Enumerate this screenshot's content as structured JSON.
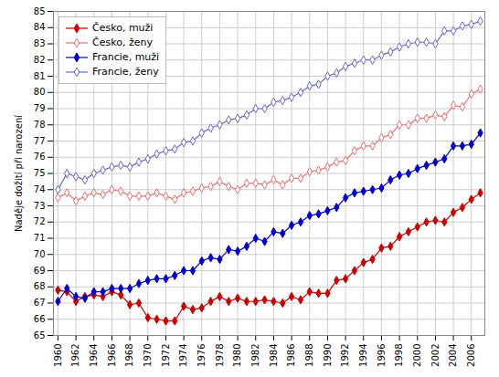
{
  "chart_data": {
    "type": "line",
    "ylabel": "Naděje dožití při narození",
    "xlim": [
      1959.5,
      2007.5
    ],
    "ylim": [
      65,
      85
    ],
    "xticks": [
      1960,
      1962,
      1964,
      1966,
      1968,
      1970,
      1972,
      1974,
      1976,
      1978,
      1980,
      1982,
      1984,
      1986,
      1988,
      1990,
      1992,
      1994,
      1996,
      1998,
      2000,
      2002,
      2004,
      2006
    ],
    "yticks": [
      65,
      66,
      67,
      68,
      69,
      70,
      71,
      72,
      73,
      74,
      75,
      76,
      77,
      78,
      79,
      80,
      81,
      82,
      83,
      84,
      85
    ],
    "grid": true,
    "legend": "upper left",
    "x": [
      1960,
      1961,
      1962,
      1963,
      1964,
      1965,
      1966,
      1967,
      1968,
      1969,
      1970,
      1971,
      1972,
      1973,
      1974,
      1975,
      1976,
      1977,
      1978,
      1979,
      1980,
      1981,
      1982,
      1983,
      1984,
      1985,
      1986,
      1987,
      1988,
      1989,
      1990,
      1991,
      1992,
      1993,
      1994,
      1995,
      1996,
      1997,
      1998,
      1999,
      2000,
      2001,
      2002,
      2003,
      2004,
      2005,
      2006,
      2007
    ],
    "series": [
      {
        "name": "Česko, muži",
        "color": "#cc0000",
        "marker": "diamond",
        "values": [
          67.8,
          67.7,
          67.1,
          67.4,
          67.5,
          67.4,
          67.7,
          67.5,
          66.9,
          67.0,
          66.1,
          66.0,
          65.9,
          65.9,
          66.8,
          66.6,
          66.7,
          67.1,
          67.4,
          67.1,
          67.3,
          67.1,
          67.1,
          67.2,
          67.1,
          67.0,
          67.4,
          67.2,
          67.7,
          67.6,
          67.6,
          68.4,
          68.5,
          69.0,
          69.5,
          69.7,
          70.4,
          70.5,
          71.1,
          71.4,
          71.7,
          72.0,
          72.1,
          72.0,
          72.6,
          72.9,
          73.4,
          73.8
        ]
      },
      {
        "name": "Česko, ženy",
        "color": "#e87070",
        "marker": "open diamond",
        "values": [
          73.5,
          73.8,
          73.3,
          73.6,
          73.8,
          73.7,
          74.0,
          73.9,
          73.6,
          73.6,
          73.6,
          73.8,
          73.6,
          73.4,
          73.8,
          73.9,
          74.1,
          74.2,
          74.5,
          74.2,
          74.0,
          74.4,
          74.4,
          74.3,
          74.6,
          74.3,
          74.7,
          74.7,
          75.1,
          75.2,
          75.4,
          75.7,
          75.8,
          76.4,
          76.7,
          76.7,
          77.2,
          77.4,
          78.0,
          78.0,
          78.4,
          78.4,
          78.6,
          78.5,
          79.2,
          79.1,
          79.9,
          80.2
        ]
      },
      {
        "name": "Francie, muži",
        "color": "#0000cc",
        "marker": "diamond",
        "values": [
          67.1,
          67.9,
          67.4,
          67.3,
          67.7,
          67.7,
          67.9,
          67.9,
          67.9,
          68.2,
          68.4,
          68.5,
          68.5,
          68.7,
          69.0,
          69.0,
          69.6,
          69.8,
          69.7,
          70.3,
          70.2,
          70.5,
          71.0,
          70.8,
          71.4,
          71.3,
          71.8,
          72.0,
          72.4,
          72.5,
          72.7,
          72.9,
          73.5,
          73.8,
          73.9,
          74.0,
          74.1,
          74.6,
          74.9,
          75.0,
          75.3,
          75.5,
          75.7,
          75.9,
          76.7,
          76.7,
          76.8,
          77.5
        ]
      },
      {
        "name": "Francie, ženy",
        "color": "#6666cc",
        "marker": "open diamond",
        "values": [
          74.0,
          75.0,
          74.8,
          74.6,
          75.0,
          75.2,
          75.4,
          75.5,
          75.4,
          75.7,
          75.9,
          76.2,
          76.4,
          76.5,
          76.9,
          77.0,
          77.5,
          77.8,
          78.0,
          78.3,
          78.4,
          78.6,
          79.0,
          79.0,
          79.4,
          79.5,
          79.7,
          80.0,
          80.4,
          80.5,
          81.0,
          81.2,
          81.6,
          81.8,
          82.0,
          82.0,
          82.3,
          82.5,
          82.8,
          83.0,
          83.1,
          83.1,
          83.0,
          83.8,
          83.8,
          84.1,
          84.2,
          84.4
        ]
      }
    ]
  }
}
